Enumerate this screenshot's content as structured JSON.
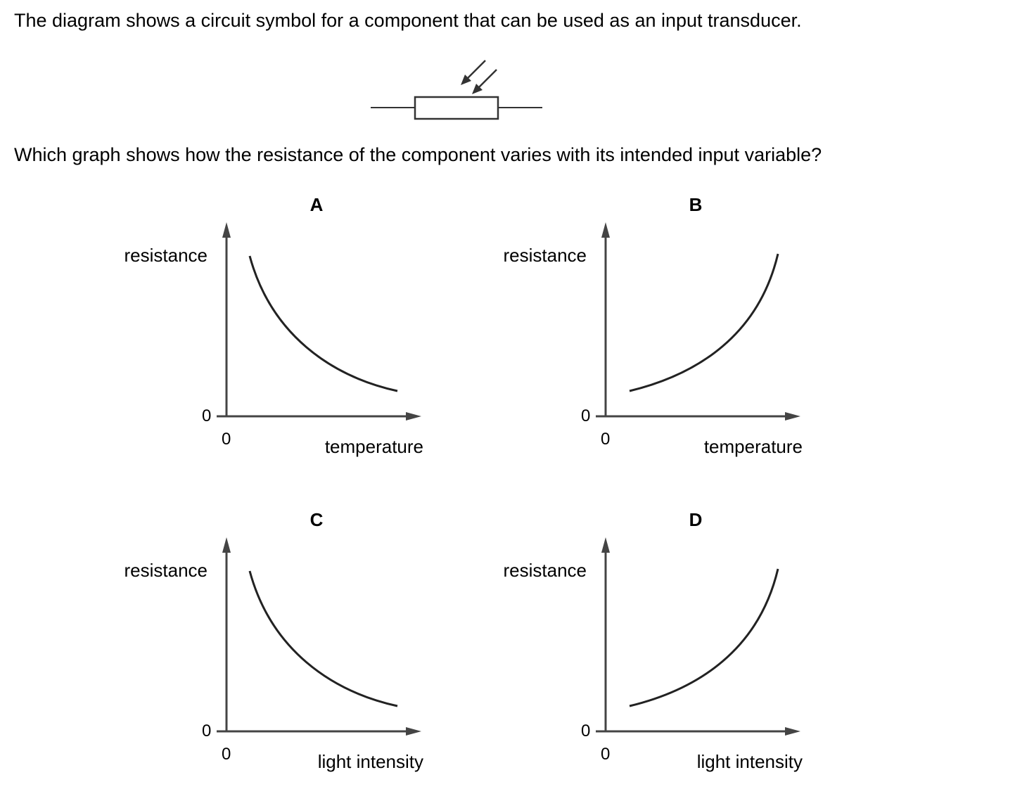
{
  "intro": "The diagram shows a circuit symbol for a component that can be used as an input transducer.",
  "question": "Which graph shows how the resistance of the component varies with its intended input variable?",
  "symbol": {
    "icon": "light-dependent-resistor-icon"
  },
  "graphs": [
    {
      "letter": "A",
      "ylabel": "resistance",
      "xlabel": "temperature",
      "zero_y": "0",
      "zero_x": "0",
      "trend": "decreasing"
    },
    {
      "letter": "B",
      "ylabel": "resistance",
      "xlabel": "temperature",
      "zero_y": "0",
      "zero_x": "0",
      "trend": "increasing"
    },
    {
      "letter": "C",
      "ylabel": "resistance",
      "xlabel": "light intensity",
      "zero_y": "0",
      "zero_x": "0",
      "trend": "decreasing"
    },
    {
      "letter": "D",
      "ylabel": "resistance",
      "xlabel": "light intensity",
      "zero_y": "0",
      "zero_x": "0",
      "trend": "increasing"
    }
  ]
}
